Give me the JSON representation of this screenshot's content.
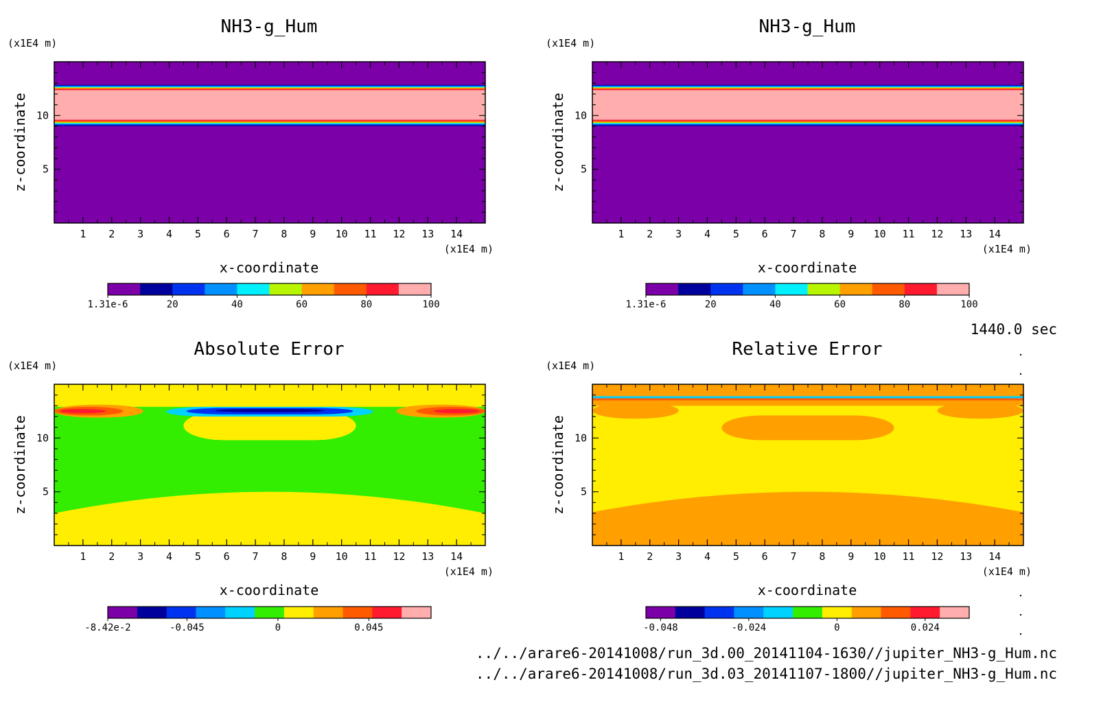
{
  "time_label": "1440.0 sec",
  "file_paths": [
    "../../arare6-20141008/run_3d.00_20141104-1630//jupiter_NH3-g_Hum.nc",
    "../../arare6-20141008/run_3d.03_20141107-1800//jupiter_NH3-g_Hum.nc"
  ],
  "chart_data": [
    {
      "type": "heatmap",
      "title": "NH3-g_Hum",
      "xlabel": "x-coordinate",
      "ylabel": "z-coordinate",
      "x_unit": "(x1E4 m)",
      "y_unit": "(x1E4 m)",
      "xlim": [
        0,
        15
      ],
      "ylim": [
        0,
        15
      ],
      "xticks": [
        "1",
        "2",
        "3",
        "4",
        "5",
        "6",
        "7",
        "8",
        "9",
        "10",
        "11",
        "12",
        "13",
        "14"
      ],
      "yticks": [
        "5",
        "10"
      ],
      "colorbar": {
        "colors": [
          "#7b00a8",
          "#00009c",
          "#0033f0",
          "#0090ff",
          "#00f0ff",
          "#b8f500",
          "#ffa000",
          "#ff5a00",
          "#ff1a30",
          "#ffadad"
        ],
        "labels": [
          "1.31e-6",
          "20",
          "40",
          "60",
          "80",
          "100"
        ],
        "label_values": [
          1.31e-06,
          20,
          40,
          60,
          80,
          100
        ],
        "min": 0,
        "max": 100
      },
      "background_color": "#7b00a8",
      "bands": [
        {
          "z_from": 9.0,
          "z_to": 9.6,
          "gradient": "up-from-low"
        },
        {
          "z_from": 9.6,
          "z_to": 12.4,
          "color": "#ffadad"
        },
        {
          "z_from": 12.4,
          "z_to": 12.9,
          "gradient": "down-from-high"
        }
      ]
    },
    {
      "type": "heatmap",
      "title": "NH3-g_Hum",
      "xlabel": "x-coordinate",
      "ylabel": "z-coordinate",
      "x_unit": "(x1E4 m)",
      "y_unit": "(x1E4 m)",
      "xlim": [
        0,
        15
      ],
      "ylim": [
        0,
        15
      ],
      "xticks": [
        "1",
        "2",
        "3",
        "4",
        "5",
        "6",
        "7",
        "8",
        "9",
        "10",
        "11",
        "12",
        "13",
        "14"
      ],
      "yticks": [
        "5",
        "10"
      ],
      "colorbar": {
        "colors": [
          "#7b00a8",
          "#00009c",
          "#0033f0",
          "#0090ff",
          "#00f0ff",
          "#b8f500",
          "#ffa000",
          "#ff5a00",
          "#ff1a30",
          "#ffadad"
        ],
        "labels": [
          "1.31e-6",
          "20",
          "40",
          "60",
          "80",
          "100"
        ],
        "label_values": [
          1.31e-06,
          20,
          40,
          60,
          80,
          100
        ],
        "min": 0,
        "max": 100
      },
      "background_color": "#7b00a8",
      "bands": [
        {
          "z_from": 9.0,
          "z_to": 9.6,
          "gradient": "up-from-low"
        },
        {
          "z_from": 9.6,
          "z_to": 12.4,
          "color": "#ffadad"
        },
        {
          "z_from": 12.4,
          "z_to": 12.9,
          "gradient": "down-from-high"
        }
      ]
    },
    {
      "type": "heatmap",
      "title": "Absolute Error",
      "xlabel": "x-coordinate",
      "ylabel": "z-coordinate",
      "x_unit": "(x1E4 m)",
      "y_unit": "(x1E4 m)",
      "xlim": [
        0,
        15
      ],
      "ylim": [
        0,
        15
      ],
      "xticks": [
        "1",
        "2",
        "3",
        "4",
        "5",
        "6",
        "7",
        "8",
        "9",
        "10",
        "11",
        "12",
        "13",
        "14"
      ],
      "yticks": [
        "5",
        "10"
      ],
      "colorbar": {
        "colors": [
          "#7b00a8",
          "#00009c",
          "#0033f0",
          "#0090ff",
          "#00d2ff",
          "#33ee00",
          "#ffee00",
          "#ffa000",
          "#ff5a00",
          "#ff1a30",
          "#ffadad"
        ],
        "labels": [
          "-8.42e-2",
          "-0.045",
          "0",
          "0.045"
        ],
        "label_values": [
          -0.0842,
          -0.045,
          0,
          0.045
        ],
        "min": -0.0842,
        "max": 0.0758
      },
      "background_color": "#ffee00",
      "regions": [
        {
          "color": "#33ee00",
          "z_top": 12.9,
          "z_bottom_edge": 3.0,
          "z_bottom_mid": 5.0
        },
        {
          "color": "#ffee00",
          "x_from": 4.5,
          "x_to": 10.5,
          "z_from": 9.8,
          "z_to": 12.5
        },
        {
          "color": "#00d2ff",
          "x_from": 3.9,
          "x_to": 11.1,
          "z_from": 12.0,
          "z_to": 12.9
        },
        {
          "color": "#0033f0",
          "x_from": 4.6,
          "x_to": 10.4,
          "z_from": 12.2,
          "z_to": 12.8
        },
        {
          "color": "#00009c",
          "x_from": 5.6,
          "x_to": 9.4,
          "z_from": 12.4,
          "z_to": 12.7
        },
        {
          "color": "#ffa000",
          "x_from": 0,
          "x_to": 3.1,
          "z_from": 11.9,
          "z_to": 13.1
        },
        {
          "color": "#ff5a00",
          "x_from": 0,
          "x_to": 2.4,
          "z_from": 12.1,
          "z_to": 12.9
        },
        {
          "color": "#ff1a30",
          "x_from": 0.2,
          "x_to": 1.8,
          "z_from": 12.3,
          "z_to": 12.7
        },
        {
          "color": "#ffa000",
          "x_from": 11.9,
          "x_to": 15,
          "z_from": 11.9,
          "z_to": 13.1
        },
        {
          "color": "#ff5a00",
          "x_from": 12.6,
          "x_to": 15,
          "z_from": 12.1,
          "z_to": 12.9
        },
        {
          "color": "#ff1a30",
          "x_from": 13.2,
          "x_to": 14.8,
          "z_from": 12.3,
          "z_to": 12.7
        }
      ]
    },
    {
      "type": "heatmap",
      "title": "Relative Error",
      "xlabel": "x-coordinate",
      "ylabel": "z-coordinate",
      "x_unit": "(x1E4 m)",
      "y_unit": "(x1E4 m)",
      "xlim": [
        0,
        15
      ],
      "ylim": [
        0,
        15
      ],
      "xticks": [
        "1",
        "2",
        "3",
        "4",
        "5",
        "6",
        "7",
        "8",
        "9",
        "10",
        "11",
        "12",
        "13",
        "14"
      ],
      "yticks": [
        "5",
        "10"
      ],
      "colorbar": {
        "colors": [
          "#7b00a8",
          "#00009c",
          "#0033f0",
          "#0090ff",
          "#00d2ff",
          "#33ee00",
          "#ffee00",
          "#ffa000",
          "#ff5a00",
          "#ff1a30",
          "#ffadad"
        ],
        "labels": [
          "-0.048",
          "-0.024",
          "0",
          "0.024"
        ],
        "label_values": [
          -0.048,
          -0.024,
          0,
          0.024
        ],
        "min": -0.052,
        "max": 0.036
      },
      "background_color": "#ffa000",
      "regions": [
        {
          "color": "#ffee00",
          "z_top": 13.0,
          "z_bottom_edge": 3.1,
          "z_bottom_mid": 5.0
        },
        {
          "color": "#ffa000",
          "x_from": 4.5,
          "x_to": 10.5,
          "z_from": 9.8,
          "z_to": 12.1
        },
        {
          "color": "#ffa000",
          "x_from": 0,
          "x_to": 3.0,
          "z_from": 11.8,
          "z_to": 13.3
        },
        {
          "color": "#ffa000",
          "x_from": 12.0,
          "x_to": 15,
          "z_from": 11.8,
          "z_to": 13.3
        },
        {
          "color": "#ff5a00",
          "x_from": 0,
          "x_to": 15,
          "z_from": 13.5,
          "z_to": 13.9
        },
        {
          "color": "#00d2ff",
          "x_from": 0,
          "x_to": 15,
          "z_from": 13.7,
          "z_to": 13.9
        },
        {
          "color": "#ffa000",
          "x_from": 0,
          "x_to": 15,
          "z_from": 13.9,
          "z_to": 14.4
        }
      ]
    }
  ]
}
